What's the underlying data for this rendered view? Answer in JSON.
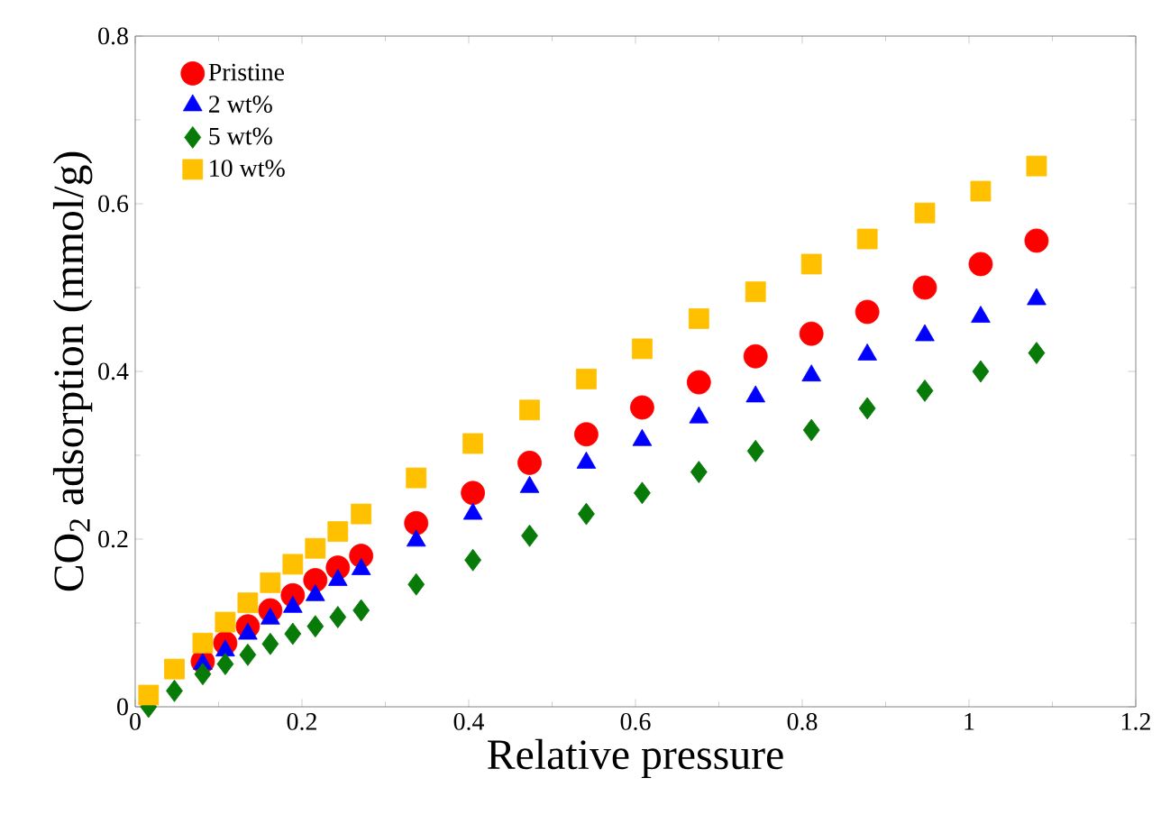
{
  "chart_data": {
    "type": "scatter",
    "xlabel": "Relative pressure",
    "ylabel": "CO$_{2}$ adsorption (mmol/g)",
    "xlim": [
      0,
      1.2
    ],
    "ylim": [
      0,
      0.8
    ],
    "xticks": [
      0,
      0.2,
      0.4,
      0.6,
      0.8,
      1,
      1.2
    ],
    "yticks": [
      0,
      0.2,
      0.4,
      0.6,
      0.8
    ],
    "x": [
      0.016,
      0.047,
      0.081,
      0.108,
      0.135,
      0.162,
      0.189,
      0.216,
      0.243,
      0.271,
      0.337,
      0.405,
      0.473,
      0.541,
      0.608,
      0.676,
      0.744,
      0.811,
      0.878,
      0.947,
      1.014,
      1.081
    ],
    "legend": "top left",
    "grid": false,
    "series": [
      {
        "name": "Pristine",
        "color": "#ff0000",
        "marker": "circle",
        "values": [
          null,
          null,
          0.054,
          0.076,
          0.096,
          0.115,
          0.133,
          0.151,
          0.166,
          0.18,
          0.219,
          0.255,
          0.291,
          0.325,
          0.357,
          0.387,
          0.418,
          0.445,
          0.471,
          0.5,
          0.528,
          0.556
        ]
      },
      {
        "name": "2 wt%",
        "color": "#0000ff",
        "marker": "triangle",
        "values": [
          null,
          null,
          0.051,
          0.067,
          0.087,
          0.105,
          0.119,
          0.133,
          0.151,
          0.164,
          0.198,
          0.23,
          0.262,
          0.291,
          0.318,
          0.345,
          0.37,
          0.395,
          0.42,
          0.443,
          0.465,
          0.486
        ]
      },
      {
        "name": "5 wt%",
        "color": "#087a08",
        "marker": "diamond",
        "values": [
          0.0,
          0.019,
          0.039,
          0.051,
          0.062,
          0.075,
          0.087,
          0.096,
          0.107,
          0.115,
          0.146,
          0.175,
          0.204,
          0.23,
          0.255,
          0.28,
          0.305,
          0.33,
          0.356,
          0.377,
          0.4,
          0.422
        ]
      },
      {
        "name": "10 wt%",
        "color": "#ffc000",
        "marker": "square",
        "values": [
          0.014,
          0.045,
          0.076,
          0.101,
          0.124,
          0.148,
          0.17,
          0.189,
          0.209,
          0.23,
          0.273,
          0.314,
          0.354,
          0.391,
          0.427,
          0.463,
          0.495,
          0.528,
          0.558,
          0.589,
          0.615,
          0.645
        ]
      }
    ]
  }
}
